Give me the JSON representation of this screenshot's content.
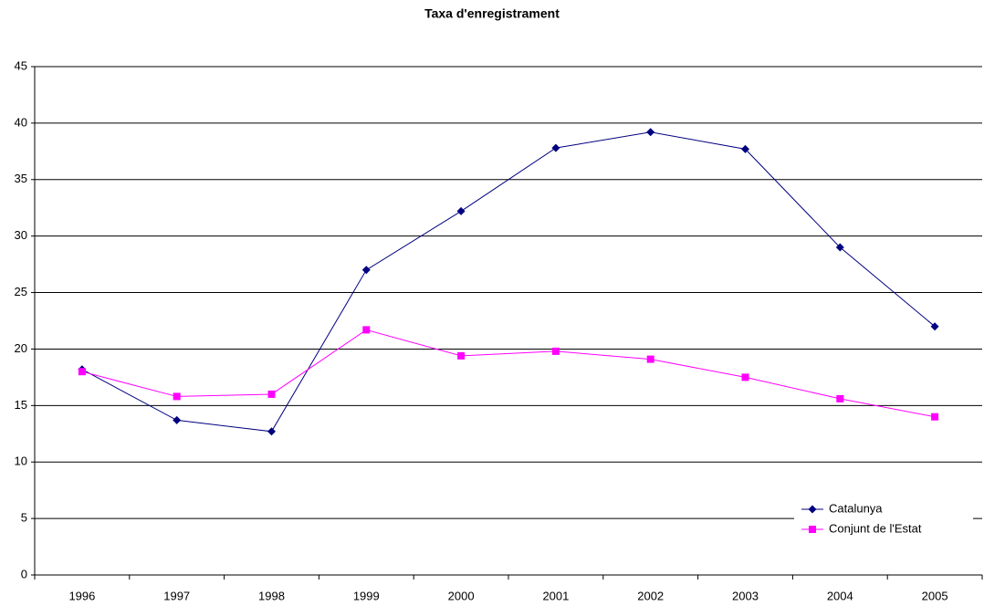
{
  "chart_data": {
    "type": "line",
    "title": "Taxa d'enregistrament",
    "categories": [
      "1996",
      "1997",
      "1998",
      "1999",
      "2000",
      "2001",
      "2002",
      "2003",
      "2004",
      "2005"
    ],
    "series": [
      {
        "name": "Catalunya",
        "color": "#000080",
        "marker": "diamond",
        "values": [
          18.2,
          13.7,
          12.7,
          27.0,
          32.2,
          37.8,
          39.2,
          37.7,
          29.0,
          22.0
        ]
      },
      {
        "name": "Conjunt de l'Estat",
        "color": "#ff00ff",
        "marker": "square",
        "values": [
          18.0,
          15.8,
          16.0,
          21.7,
          19.4,
          19.8,
          19.1,
          17.5,
          15.6,
          14.0
        ]
      }
    ],
    "ylim": [
      0,
      45
    ],
    "yticks": [
      0,
      5,
      10,
      15,
      20,
      25,
      30,
      35,
      40,
      45
    ],
    "grid": true,
    "legend": "lower right"
  }
}
